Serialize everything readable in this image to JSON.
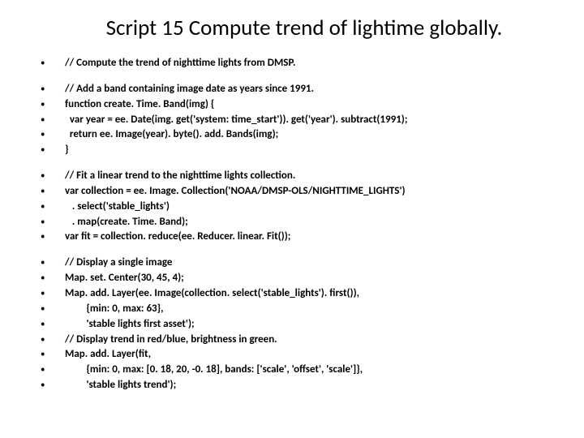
{
  "title": "Script 15 Compute trend of lightime globally.",
  "blocks": [
    {
      "lines": [
        "// Compute the trend of nighttime lights from DMSP."
      ]
    },
    {
      "lines": [
        "// Add a band containing image date as years since 1991.",
        "function create. Time. Band(img) {",
        "  var year = ee. Date(img. get('system: time_start')). get('year'). subtract(1991);",
        "  return ee. Image(year). byte(). add. Bands(img);",
        "}"
      ]
    },
    {
      "lines": [
        "// Fit a linear trend to the nighttime lights collection.",
        "var collection = ee. Image. Collection('NOAA/DMSP-OLS/NIGHTTIME_LIGHTS')",
        "   . select('stable_lights')",
        "   . map(create. Time. Band);",
        "var fit = collection. reduce(ee. Reducer. linear. Fit());"
      ]
    },
    {
      "lines": [
        "// Display a single image",
        "Map. set. Center(30, 45, 4);",
        "Map. add. Layer(ee. Image(collection. select('stable_lights'). first()),",
        "         {min: 0, max: 63},",
        "         'stable lights first asset');",
        "// Display trend in red/blue, brightness in green.",
        "Map. add. Layer(fit,",
        "         {min: 0, max: [0. 18, 20, -0. 18], bands: ['scale', 'offset', 'scale']},",
        "         'stable lights trend');"
      ]
    }
  ],
  "style": {
    "bullet_char": "•",
    "title_color": "#000000",
    "text_color": "#000000",
    "background_color": "#ffffff",
    "title_fontsize": 27,
    "line_fontsize": 13,
    "font_weight": 700
  }
}
